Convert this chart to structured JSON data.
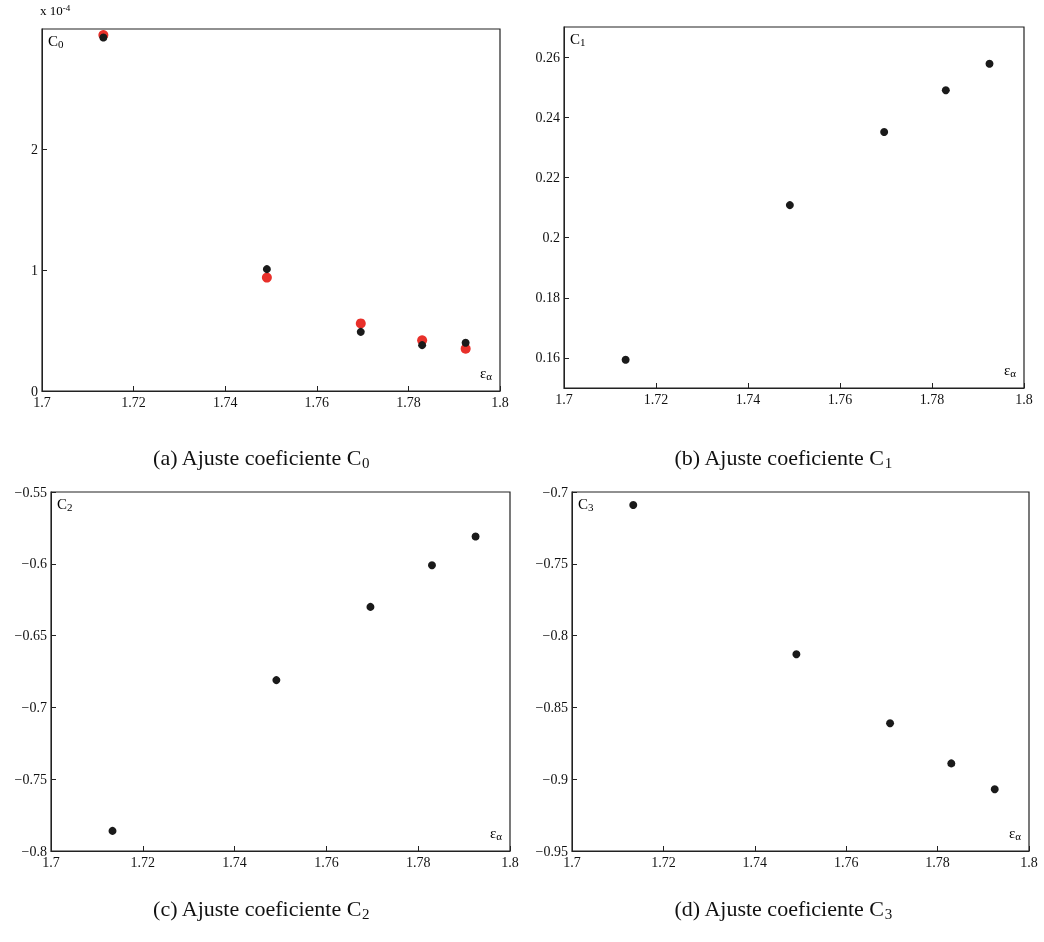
{
  "chart_data": [
    {
      "type": "scatter",
      "title": "(a) Ajuste coeficiente C$_{0}$",
      "xlabel": "ε$_{α}$",
      "ylabel": "C$_{0}$",
      "annotations": [
        "x 10$^{-4}$"
      ],
      "marker": "circle",
      "x": [
        1.7134,
        1.7491,
        1.7696,
        1.783,
        1.7925
      ],
      "series": [
        {
          "color": "#e8302a",
          "values": [
            2.95,
            0.94,
            0.56,
            0.42,
            0.35
          ]
        },
        {
          "color": "#1a1a1a",
          "values": [
            2.93,
            1.01,
            0.49,
            0.38,
            0.4
          ]
        }
      ],
      "xlim": [
        1.7,
        1.8
      ],
      "xticks": [
        1.7,
        1.72,
        1.74,
        1.76,
        1.78,
        1.8
      ],
      "ylim": [
        0,
        3
      ],
      "yticks": [
        0,
        1,
        2
      ]
    },
    {
      "type": "scatter",
      "title": "(b) Ajuste coeficiente C$_{1}$",
      "xlabel": "ε$_{α}$",
      "ylabel": "C$_{1}$",
      "marker": "circle",
      "x": [
        1.7134,
        1.7491,
        1.7696,
        1.783,
        1.7925
      ],
      "series": [
        {
          "color": "#1a1a1a",
          "values": [
            0.1594,
            0.2108,
            0.2351,
            0.249,
            0.2578
          ]
        }
      ],
      "xlim": [
        1.7,
        1.8
      ],
      "xticks": [
        1.7,
        1.72,
        1.74,
        1.76,
        1.78,
        1.8
      ],
      "ylim": [
        0.15,
        0.27
      ],
      "yticks": [
        0.16,
        0.18,
        0.2,
        0.22,
        0.24,
        0.26
      ]
    },
    {
      "type": "scatter",
      "title": "(c) Ajuste coeficiente C$_{2}$",
      "xlabel": "ε$_{α}$",
      "ylabel": "C$_{2}$",
      "marker": "circle",
      "x": [
        1.7134,
        1.7491,
        1.7696,
        1.783,
        1.7925
      ],
      "series": [
        {
          "color": "#1a1a1a",
          "values": [
            -0.786,
            -0.681,
            -0.63,
            -0.601,
            -0.581
          ]
        }
      ],
      "xlim": [
        1.7,
        1.8
      ],
      "xticks": [
        1.7,
        1.72,
        1.74,
        1.76,
        1.78,
        1.8
      ],
      "ylim": [
        -0.8,
        -0.55
      ],
      "yticks": [
        -0.8,
        -0.75,
        -0.7,
        -0.65,
        -0.6,
        -0.55
      ]
    },
    {
      "type": "scatter",
      "title": "(d) Ajuste coeficiente C$_{3}$",
      "xlabel": "ε$_{α}$",
      "ylabel": "C$_{3}$",
      "marker": "circle",
      "x": [
        1.7134,
        1.7491,
        1.7696,
        1.783,
        1.7925
      ],
      "series": [
        {
          "color": "#1a1a1a",
          "values": [
            -0.709,
            -0.813,
            -0.861,
            -0.889,
            -0.907
          ]
        }
      ],
      "xlim": [
        1.7,
        1.8
      ],
      "xticks": [
        1.7,
        1.72,
        1.74,
        1.76,
        1.78,
        1.8
      ],
      "ylim": [
        -0.95,
        -0.7
      ],
      "yticks": [
        -0.95,
        -0.9,
        -0.85,
        -0.8,
        -0.75,
        -0.7
      ]
    }
  ]
}
